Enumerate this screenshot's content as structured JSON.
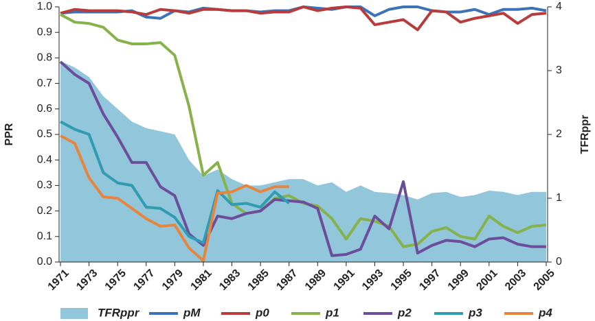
{
  "chart_data": {
    "type": "line",
    "x": [
      1971,
      1972,
      1973,
      1974,
      1975,
      1976,
      1977,
      1978,
      1979,
      1980,
      1981,
      1982,
      1983,
      1984,
      1985,
      1986,
      1987,
      1988,
      1989,
      1990,
      1991,
      1992,
      1993,
      1994,
      1995,
      1996,
      1997,
      1998,
      1999,
      2000,
      2001,
      2002,
      2003,
      2004,
      2005
    ],
    "xlim": [
      1971,
      2005
    ],
    "xticks": [
      1971,
      1973,
      1975,
      1977,
      1979,
      1981,
      1983,
      1985,
      1987,
      1989,
      1991,
      1993,
      1995,
      1997,
      1999,
      2001,
      2003,
      2005
    ],
    "ylabel": "PPR",
    "y2label": "TFRppr",
    "ylim": [
      0,
      1
    ],
    "yticks": [
      {
        "value": 0,
        "label": "0.0"
      },
      0.1,
      0.2,
      0.3,
      0.4,
      0.5,
      0.6,
      0.7,
      0.8,
      0.9,
      {
        "value": 1,
        "label": "1.0"
      }
    ],
    "y2lim": [
      0,
      4
    ],
    "y2ticks": [
      0,
      1,
      2,
      3,
      4
    ],
    "grid": false,
    "legend": "bottom",
    "series": [
      {
        "name": "TFRppr",
        "type": "area",
        "axis": "y2",
        "color": "#92c6da",
        "values": [
          3.15,
          3.05,
          2.9,
          2.6,
          2.4,
          2.2,
          2.1,
          2.05,
          2.0,
          1.6,
          1.35,
          1.45,
          1.3,
          1.2,
          1.2,
          1.25,
          1.3,
          1.3,
          1.2,
          1.25,
          1.1,
          1.2,
          1.1,
          1.08,
          1.05,
          0.98,
          1.08,
          1.1,
          1.02,
          1.05,
          1.12,
          1.1,
          1.05,
          1.1,
          1.1
        ]
      },
      {
        "name": "pM",
        "color": "#3b73b6",
        "values": [
          0.975,
          0.98,
          0.98,
          0.98,
          0.98,
          0.985,
          0.96,
          0.955,
          0.985,
          0.98,
          0.995,
          0.99,
          0.985,
          0.985,
          0.98,
          0.985,
          0.985,
          1.0,
          0.995,
          0.99,
          1.0,
          1.0,
          0.965,
          0.99,
          1.0,
          1.0,
          0.985,
          0.98,
          0.98,
          0.99,
          0.97,
          0.99,
          0.99,
          0.995,
          0.985
        ]
      },
      {
        "name": "p0",
        "color": "#b83c3c",
        "values": [
          0.975,
          0.99,
          0.985,
          0.985,
          0.985,
          0.98,
          0.97,
          0.99,
          0.985,
          0.975,
          0.99,
          0.99,
          0.985,
          0.985,
          0.975,
          0.98,
          0.98,
          1.0,
          0.985,
          0.995,
          1.0,
          0.995,
          0.93,
          0.94,
          0.95,
          0.91,
          0.985,
          0.98,
          0.94,
          0.955,
          0.965,
          0.975,
          0.935,
          0.97,
          0.975
        ]
      },
      {
        "name": "p1",
        "color": "#86b24b",
        "values": [
          0.97,
          0.94,
          0.935,
          0.92,
          0.87,
          0.855,
          0.855,
          0.86,
          0.81,
          0.61,
          0.34,
          0.39,
          0.23,
          0.19,
          0.2,
          0.25,
          0.26,
          0.23,
          0.22,
          0.17,
          0.09,
          0.17,
          0.16,
          0.14,
          0.06,
          0.07,
          0.12,
          0.135,
          0.1,
          0.09,
          0.18,
          0.14,
          0.115,
          0.14,
          0.145
        ]
      },
      {
        "name": "p2",
        "color": "#6b4d9b",
        "values": [
          0.785,
          0.735,
          0.7,
          0.58,
          0.49,
          0.39,
          0.39,
          0.295,
          0.26,
          0.11,
          0.065,
          0.18,
          0.17,
          0.19,
          0.2,
          0.245,
          0.24,
          0.235,
          0.21,
          0.025,
          0.03,
          0.05,
          0.18,
          0.13,
          0.315,
          0.035,
          0.065,
          0.085,
          0.08,
          0.06,
          0.09,
          0.095,
          0.07,
          0.06,
          0.06
        ]
      },
      {
        "name": "p3",
        "color": "#2f9cb2",
        "values": [
          0.55,
          0.52,
          0.5,
          0.35,
          0.31,
          0.3,
          0.215,
          0.21,
          0.175,
          0.1,
          0.075,
          0.28,
          0.225,
          0.23,
          0.215,
          0.275,
          0.23,
          null,
          null,
          null,
          null,
          null,
          null,
          null,
          null,
          null,
          null,
          null,
          null,
          null,
          null,
          null,
          null,
          null,
          null
        ]
      },
      {
        "name": "p4",
        "color": "#e8843c",
        "values": [
          0.495,
          0.465,
          0.33,
          0.255,
          0.25,
          0.21,
          0.17,
          0.14,
          0.145,
          0.055,
          0.005,
          0.27,
          0.275,
          0.3,
          0.275,
          0.295,
          0.295,
          null,
          null,
          null,
          null,
          null,
          null,
          null,
          null,
          null,
          null,
          null,
          null,
          null,
          null,
          null,
          null,
          null,
          null
        ]
      }
    ]
  }
}
